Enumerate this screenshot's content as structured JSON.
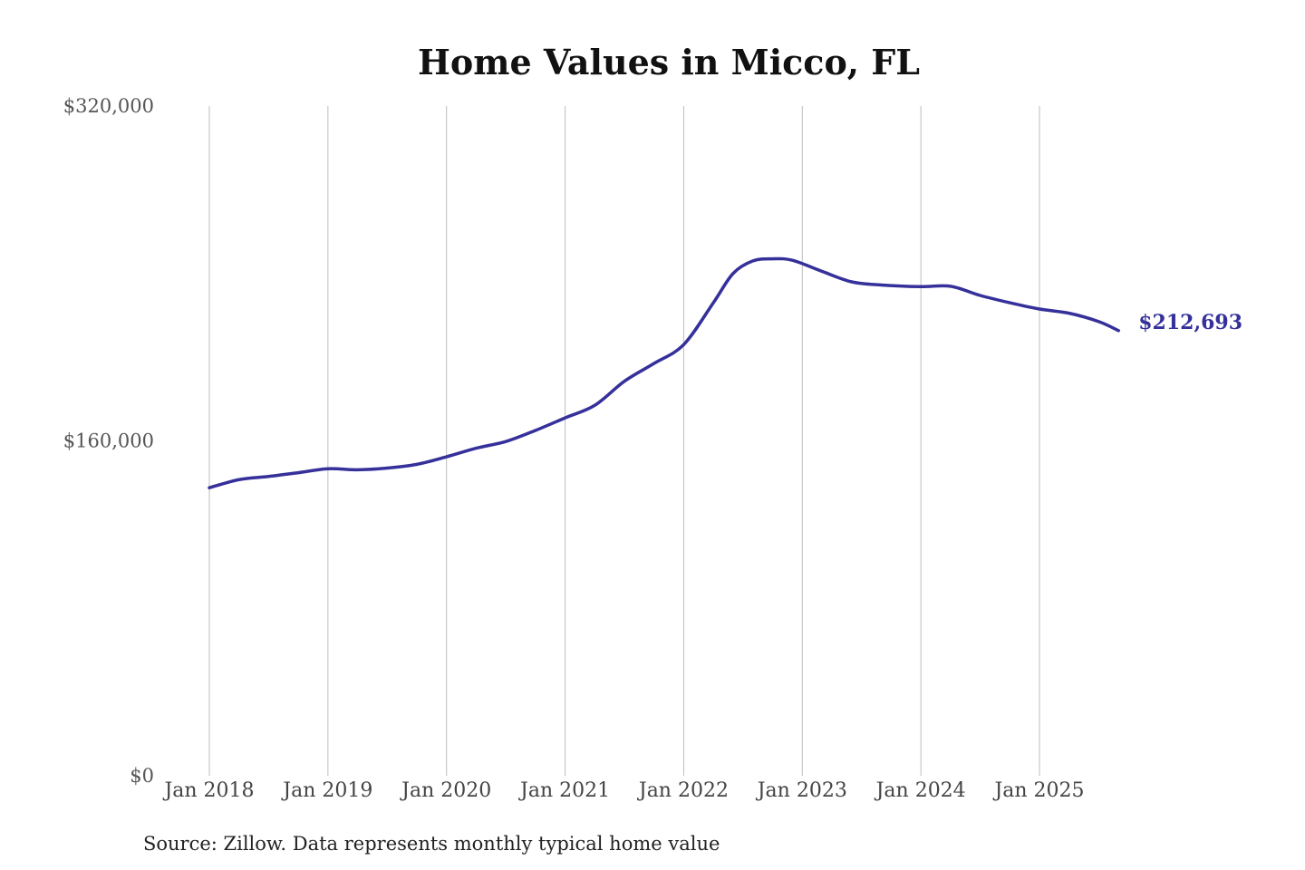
{
  "colors": {
    "series": "#35309a",
    "grid": "#bdbdbd",
    "title": "#111111",
    "axis_text": "#555555"
  },
  "chart_data": {
    "type": "line",
    "title": "Home Values in Micco, FL",
    "xlabel": "",
    "ylabel": "",
    "source": "Source: Zillow. Data represents monthly typical home value",
    "ylim": [
      0,
      320000
    ],
    "y_ticks": [
      0,
      160000,
      320000
    ],
    "y_tick_labels": [
      "$0",
      "$160,000",
      "$320,000"
    ],
    "x_ticks": [
      "2018-01",
      "2019-01",
      "2020-01",
      "2021-01",
      "2022-01",
      "2023-01",
      "2024-01",
      "2025-01"
    ],
    "x_tick_labels": [
      "Jan 2018",
      "Jan 2019",
      "Jan 2020",
      "Jan 2021",
      "Jan 2022",
      "Jan 2023",
      "Jan 2024",
      "Jan 2025"
    ],
    "grid": "vertical",
    "end_label": "$212,693",
    "series": [
      {
        "points": [
          [
            "2018-01",
            137600
          ],
          [
            "2018-04",
            141500
          ],
          [
            "2018-07",
            143000
          ],
          [
            "2018-10",
            144800
          ],
          [
            "2019-01",
            146700
          ],
          [
            "2019-04",
            146200
          ],
          [
            "2019-07",
            147000
          ],
          [
            "2019-10",
            148800
          ],
          [
            "2020-01",
            152400
          ],
          [
            "2020-04",
            156500
          ],
          [
            "2020-07",
            159700
          ],
          [
            "2020-10",
            165000
          ],
          [
            "2021-01",
            171000
          ],
          [
            "2021-04",
            177000
          ],
          [
            "2021-07",
            188500
          ],
          [
            "2021-10",
            197000
          ],
          [
            "2022-01",
            206000
          ],
          [
            "2022-04",
            226000
          ],
          [
            "2022-06",
            240000
          ],
          [
            "2022-08",
            246000
          ],
          [
            "2022-10",
            247000
          ],
          [
            "2022-12",
            246300
          ],
          [
            "2023-03",
            241000
          ],
          [
            "2023-06",
            236000
          ],
          [
            "2023-09",
            234500
          ],
          [
            "2024-01",
            233700
          ],
          [
            "2024-04",
            233900
          ],
          [
            "2024-07",
            229500
          ],
          [
            "2024-10",
            226000
          ],
          [
            "2025-01",
            223000
          ],
          [
            "2025-04",
            221000
          ],
          [
            "2025-07",
            217000
          ],
          [
            "2025-09",
            212693
          ]
        ]
      }
    ]
  }
}
